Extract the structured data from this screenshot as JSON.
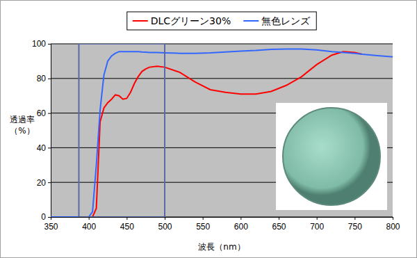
{
  "chart_data": {
    "type": "line",
    "xlabel": "波長（nm）",
    "ylabel": "透過率\n（%）",
    "x": [
      350,
      400,
      405,
      410,
      415,
      420,
      425,
      430,
      435,
      440,
      445,
      450,
      455,
      460,
      465,
      470,
      475,
      480,
      490,
      500,
      520,
      540,
      560,
      580,
      600,
      620,
      640,
      660,
      680,
      700,
      720,
      735,
      750,
      760,
      780,
      800
    ],
    "series": [
      {
        "name": "DLCグリーン30%",
        "color": "#ff0000",
        "values": [
          0,
          0,
          0,
          5,
          55,
          63,
          66,
          68,
          70.5,
          70,
          68,
          68.5,
          72,
          77,
          81,
          84,
          85.5,
          86.5,
          87,
          86.5,
          83.5,
          78,
          73.5,
          72,
          71,
          71,
          72.5,
          76,
          81,
          88,
          93.5,
          95.5,
          95,
          94,
          null,
          null
        ]
      },
      {
        "name": "無色レンズ",
        "color": "#3366ff",
        "values": [
          0,
          0,
          3,
          30,
          62,
          82,
          90,
          93,
          94.5,
          95.5,
          95.5,
          95.5,
          95.5,
          95.5,
          95.5,
          95.3,
          95.2,
          95,
          95,
          94.8,
          94.5,
          94.5,
          94.8,
          95.3,
          95.8,
          96.2,
          96.8,
          97,
          97,
          96.5,
          95.5,
          95,
          94.5,
          94,
          93.2,
          92.5
        ]
      }
    ],
    "xlim": [
      350,
      800
    ],
    "xticks": [
      350,
      400,
      450,
      500,
      550,
      600,
      650,
      700,
      750,
      800
    ],
    "ylim": [
      0,
      100
    ],
    "yticks": [
      0,
      20,
      40,
      60,
      80,
      100
    ],
    "grid": true,
    "legend": "top",
    "highlight_range": [
      387,
      500
    ]
  }
}
